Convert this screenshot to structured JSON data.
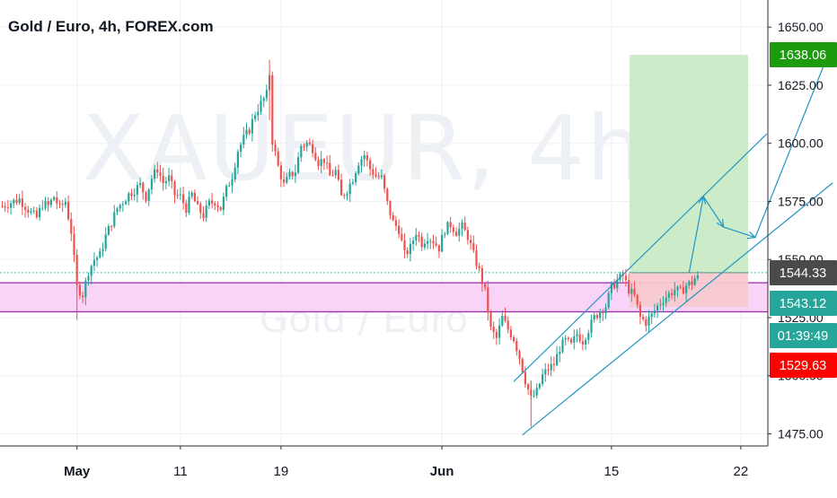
{
  "header": {
    "title": "Gold / Euro, 4h, FOREX.com"
  },
  "watermark": {
    "symbol": "XAUEUR, 4h",
    "name": "Gold / Euro"
  },
  "colors": {
    "up": "#26a69a",
    "down": "#ef5350",
    "grid": "#eef0f3",
    "axis": "#131722",
    "zone_fill": "#f9d3f8",
    "zone_line": "#9c27b0",
    "channel": "#2196c4",
    "target": "#c9ebc6",
    "stop": "#f8c9cf",
    "price_line": "#26a69a",
    "label_green": "#1e9a0e",
    "label_gray": "#4a4a4a",
    "label_teal": "#26a69a",
    "label_red": "#ff0000"
  },
  "chart_data": {
    "type": "candlestick",
    "title": "Gold / Euro, 4h, FOREX.com",
    "y_axis": {
      "range": [
        1469,
        1662
      ],
      "ticks": [
        1475,
        1500,
        1525,
        1550,
        1575,
        1600,
        1625,
        1650
      ],
      "tick_labels": [
        "1475.00",
        "1500.00",
        "1525.00",
        "1550.00",
        "1575.00",
        "1600.00",
        "1625.00",
        "1650.00"
      ]
    },
    "x_axis": {
      "ticks": [
        "May",
        "11",
        "19",
        "Jun",
        "15",
        "22"
      ],
      "bold_ticks": [
        "May",
        "Jun"
      ]
    },
    "grid": true,
    "series_path": [
      [
        0,
        1573
      ],
      [
        6,
        1576
      ],
      [
        10,
        1570
      ],
      [
        12,
        1568
      ],
      [
        14,
        1574
      ],
      [
        16,
        1573
      ],
      [
        18,
        1577
      ],
      [
        20,
        1572
      ],
      [
        22,
        1575
      ],
      [
        24,
        1562
      ],
      [
        26,
        1538
      ],
      [
        28,
        1535
      ],
      [
        30,
        1545
      ],
      [
        32,
        1550
      ],
      [
        34,
        1552
      ],
      [
        36,
        1560
      ],
      [
        38,
        1566
      ],
      [
        40,
        1572
      ],
      [
        44,
        1578
      ],
      [
        48,
        1582
      ],
      [
        50,
        1577
      ],
      [
        52,
        1585
      ],
      [
        54,
        1589
      ],
      [
        56,
        1583
      ],
      [
        58,
        1585
      ],
      [
        60,
        1578
      ],
      [
        62,
        1577
      ],
      [
        64,
        1572
      ],
      [
        66,
        1578
      ],
      [
        68,
        1572
      ],
      [
        70,
        1569
      ],
      [
        72,
        1574
      ],
      [
        74,
        1575
      ],
      [
        76,
        1572
      ],
      [
        78,
        1580
      ],
      [
        80,
        1586
      ],
      [
        82,
        1597
      ],
      [
        84,
        1602
      ],
      [
        86,
        1606
      ],
      [
        88,
        1613
      ],
      [
        90,
        1617
      ],
      [
        92,
        1621
      ],
      [
        93,
        1630
      ],
      [
        94,
        1601
      ],
      [
        96,
        1590
      ],
      [
        98,
        1582
      ],
      [
        100,
        1586
      ],
      [
        102,
        1588
      ],
      [
        104,
        1599
      ],
      [
        106,
        1600
      ],
      [
        108,
        1598
      ],
      [
        110,
        1592
      ],
      [
        112,
        1593
      ],
      [
        114,
        1586
      ],
      [
        116,
        1588
      ],
      [
        118,
        1577
      ],
      [
        120,
        1580
      ],
      [
        122,
        1585
      ],
      [
        124,
        1592
      ],
      [
        126,
        1595
      ],
      [
        128,
        1589
      ],
      [
        130,
        1586
      ],
      [
        132,
        1585
      ],
      [
        134,
        1574
      ],
      [
        136,
        1566
      ],
      [
        138,
        1563
      ],
      [
        140,
        1552
      ],
      [
        142,
        1555
      ],
      [
        144,
        1562
      ],
      [
        146,
        1557
      ],
      [
        148,
        1560
      ],
      [
        150,
        1558
      ],
      [
        152,
        1555
      ],
      [
        154,
        1563
      ],
      [
        156,
        1565
      ],
      [
        158,
        1562
      ],
      [
        160,
        1564
      ],
      [
        162,
        1560
      ],
      [
        164,
        1552
      ],
      [
        166,
        1545
      ],
      [
        168,
        1536
      ],
      [
        170,
        1520
      ],
      [
        172,
        1516
      ],
      [
        174,
        1525
      ],
      [
        176,
        1520
      ],
      [
        178,
        1516
      ],
      [
        180,
        1508
      ],
      [
        182,
        1498
      ],
      [
        184,
        1490
      ],
      [
        186,
        1493
      ],
      [
        188,
        1500
      ],
      [
        190,
        1503
      ],
      [
        192,
        1505
      ],
      [
        194,
        1512
      ],
      [
        196,
        1515
      ],
      [
        198,
        1513
      ],
      [
        200,
        1518
      ],
      [
        202,
        1515
      ],
      [
        204,
        1520
      ],
      [
        206,
        1525
      ],
      [
        208,
        1528
      ],
      [
        210,
        1530
      ],
      [
        212,
        1538
      ],
      [
        214,
        1541
      ],
      [
        216,
        1543
      ],
      [
        218,
        1537
      ],
      [
        220,
        1534
      ],
      [
        222,
        1525
      ],
      [
        224,
        1523
      ],
      [
        226,
        1526
      ],
      [
        228,
        1530
      ],
      [
        230,
        1533
      ],
      [
        232,
        1535
      ],
      [
        234,
        1537
      ],
      [
        236,
        1536
      ],
      [
        238,
        1539
      ],
      [
        240,
        1540
      ],
      [
        242,
        1544
      ]
    ],
    "date_ticks_index": {
      "May": 26,
      "11": 62,
      "19": 97,
      "Jun": 153,
      "15": 212,
      "22": 257
    },
    "last_close": 1543.12,
    "demand_zone": {
      "top": 1540.0,
      "bottom": 1527.5
    },
    "dotted_price_line": 1544.33,
    "long_position": {
      "target": 1638.06,
      "entry": 1544.33,
      "stop": 1529.63
    },
    "channel": {
      "upper": {
        "from": [
          178,
          1497.5
        ],
        "to": [
          266,
          1604
        ]
      },
      "lower": {
        "from": [
          181,
          1474.5
        ],
        "to": [
          289,
          1583
        ]
      }
    },
    "projection_path": [
      [
        239,
        1544.3
      ],
      [
        244,
        1577.1
      ],
      [
        251,
        1564
      ],
      [
        262,
        1559.5
      ],
      [
        287,
        1637
      ]
    ],
    "price_labels": [
      {
        "text": "1638.06",
        "value": 1638.06,
        "role": "target"
      },
      {
        "text": "1544.33",
        "value": 1544.33,
        "role": "entry"
      },
      {
        "text": "1543.12",
        "value": 1543.12,
        "role": "last"
      },
      {
        "text": "01:39:49",
        "role": "countdown"
      },
      {
        "text": "1529.63",
        "value": 1529.63,
        "role": "stop"
      }
    ]
  }
}
